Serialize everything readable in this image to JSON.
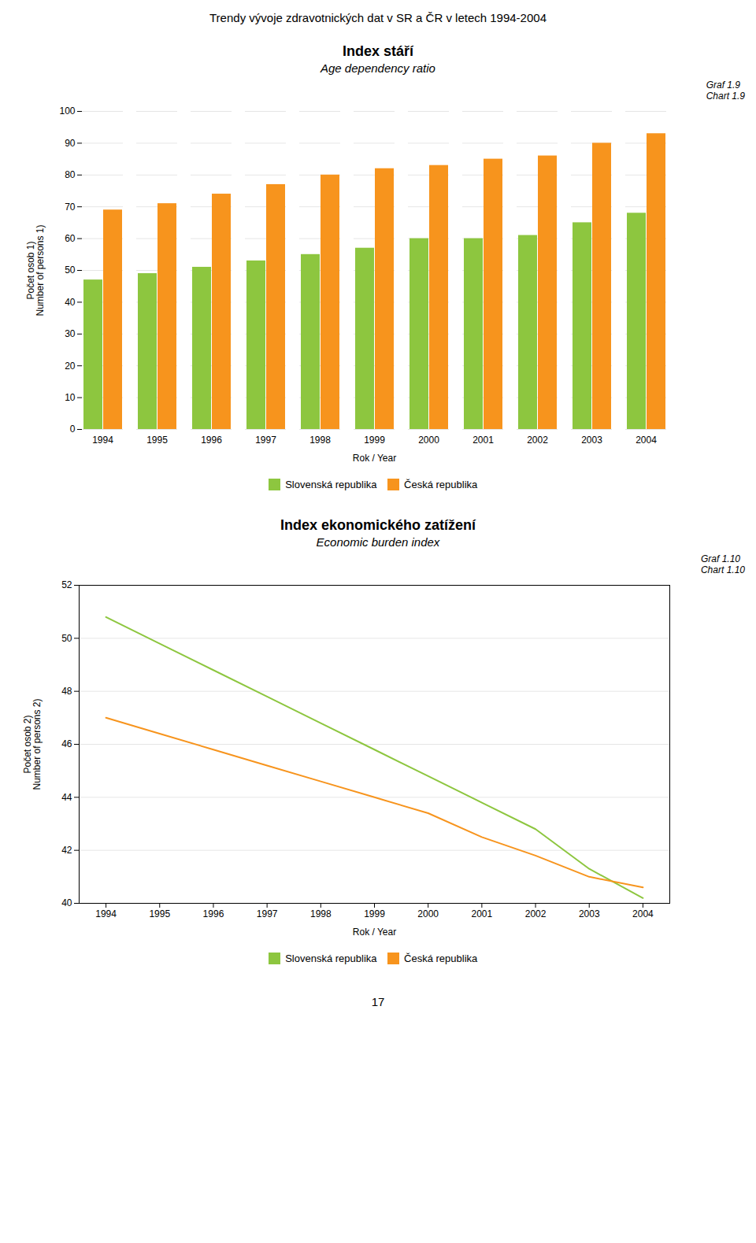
{
  "title": "Trendy vývoje zdravotnických dat v SR a ČR v letech 1994-2004",
  "annotations": [
    "17"
  ],
  "chart_data": [
    {
      "type": "bar",
      "title": "Index stáří",
      "subtitle": "Age dependency ratio",
      "annotations": [
        "Graf 1.9",
        "Chart 1.9"
      ],
      "xlabel": "Rok / Year",
      "ylabel": "Počet osob 1)\nNumber of persons 1)",
      "categories": [
        "1994",
        "1995",
        "1996",
        "1997",
        "1998",
        "1999",
        "2000",
        "2001",
        "2002",
        "2003",
        "2004"
      ],
      "series": [
        {
          "name": "Slovenská republika",
          "color": "#8DC63F",
          "values": [
            47,
            49,
            51,
            53,
            55,
            57,
            60,
            60,
            61,
            65,
            68
          ]
        },
        {
          "name": "Česká republika",
          "color": "#F7941D",
          "values": [
            69,
            71,
            74,
            77,
            80,
            82,
            83,
            85,
            86,
            90,
            93
          ]
        }
      ],
      "ylim": [
        0,
        100
      ],
      "yticks": [
        0,
        10,
        20,
        30,
        40,
        50,
        60,
        70,
        80,
        90,
        100
      ],
      "grid": true,
      "legend": "bottom"
    },
    {
      "type": "line",
      "title": "Index ekonomického zatížení",
      "subtitle": "Economic burden index",
      "annotations": [
        "Graf 1.10",
        "Chart 1.10"
      ],
      "xlabel": "Rok / Year",
      "ylabel": "Počet osob 2)\nNumber of persons 2)",
      "x": [
        1994,
        1995,
        1996,
        1997,
        1998,
        1999,
        2000,
        2001,
        2002,
        2003,
        2004
      ],
      "series": [
        {
          "name": "Slovenská republika",
          "color": "#8DC63F",
          "values": [
            50.8,
            49.8,
            48.8,
            47.8,
            46.8,
            45.8,
            44.8,
            43.8,
            42.8,
            41.3,
            40.2
          ]
        },
        {
          "name": "Česká republika",
          "color": "#F7941D",
          "values": [
            47.0,
            46.4,
            45.8,
            45.2,
            44.6,
            44.0,
            43.4,
            42.5,
            41.8,
            41.0,
            40.6
          ]
        }
      ],
      "xlim": [
        1993.5,
        2004.5
      ],
      "xticks": [
        1994,
        1995,
        1996,
        1997,
        1998,
        1999,
        2000,
        2001,
        2002,
        2003,
        2004
      ],
      "ylim": [
        40,
        52
      ],
      "yticks": [
        40,
        42,
        44,
        46,
        48,
        50,
        52
      ],
      "grid": true,
      "legend": "bottom"
    }
  ]
}
